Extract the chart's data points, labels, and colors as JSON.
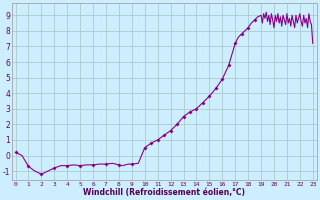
{
  "xlabel": "Windchill (Refroidissement éolien,°C)",
  "background_color": "#cceeff",
  "grid_color": "#aacccc",
  "line_color": "#880088",
  "marker_color": "#880088",
  "xlim": [
    -0.3,
    23.3
  ],
  "ylim": [
    -1.6,
    9.8
  ],
  "yticks": [
    -1,
    0,
    1,
    2,
    3,
    4,
    5,
    6,
    7,
    8,
    9
  ],
  "xticks": [
    0,
    1,
    2,
    3,
    4,
    5,
    6,
    7,
    8,
    9,
    10,
    11,
    12,
    13,
    14,
    15,
    16,
    17,
    18,
    19,
    20,
    21,
    22,
    23
  ],
  "x": [
    0.0,
    0.5,
    1.0,
    1.5,
    2.0,
    2.5,
    3.0,
    3.5,
    4.0,
    4.5,
    5.0,
    5.5,
    6.0,
    6.5,
    7.0,
    7.5,
    8.0,
    8.25,
    8.5,
    8.75,
    9.0,
    9.5,
    10.0,
    10.5,
    11.0,
    11.5,
    12.0,
    12.5,
    13.0,
    13.5,
    14.0,
    14.5,
    15.0,
    15.5,
    16.0,
    16.5,
    17.0,
    17.25,
    17.5,
    18.0,
    18.25,
    18.5,
    18.75,
    19.0,
    19.1,
    19.2,
    19.3,
    19.4,
    19.5,
    19.6,
    19.7,
    19.8,
    19.9,
    20.0,
    20.1,
    20.2,
    20.3,
    20.4,
    20.5,
    20.6,
    20.7,
    20.8,
    20.9,
    21.0,
    21.1,
    21.2,
    21.3,
    21.4,
    21.5,
    21.6,
    21.7,
    21.8,
    21.9,
    22.0,
    22.1,
    22.2,
    22.3,
    22.4,
    22.5,
    22.6,
    22.7,
    22.8,
    22.9,
    23.0
  ],
  "y": [
    0.2,
    0.0,
    -0.7,
    -1.0,
    -1.2,
    -1.0,
    -0.8,
    -0.65,
    -0.65,
    -0.6,
    -0.65,
    -0.6,
    -0.6,
    -0.55,
    -0.55,
    -0.5,
    -0.6,
    -0.65,
    -0.6,
    -0.55,
    -0.55,
    -0.5,
    0.5,
    0.8,
    1.0,
    1.3,
    1.6,
    2.0,
    2.5,
    2.8,
    3.0,
    3.4,
    3.8,
    4.3,
    4.9,
    5.8,
    7.2,
    7.6,
    7.8,
    8.2,
    8.5,
    8.7,
    8.9,
    9.0,
    8.5,
    9.1,
    8.8,
    9.2,
    8.6,
    9.0,
    8.4,
    9.1,
    8.7,
    8.2,
    9.0,
    8.6,
    9.1,
    8.5,
    8.9,
    8.3,
    9.0,
    8.7,
    8.4,
    9.1,
    8.5,
    8.8,
    8.3,
    9.0,
    8.6,
    8.2,
    9.0,
    8.5,
    8.8,
    9.1,
    8.6,
    8.3,
    9.0,
    8.5,
    8.8,
    8.2,
    9.1,
    8.6,
    8.4,
    7.2
  ],
  "marker_x": [
    0.0,
    1.0,
    2.0,
    3.0,
    4.0,
    5.0,
    6.0,
    7.0,
    8.0,
    9.0,
    10.0,
    10.5,
    11.0,
    11.5,
    12.0,
    12.5,
    13.0,
    13.5,
    14.0,
    14.5,
    15.0,
    15.5,
    16.0,
    16.5,
    17.0,
    17.5,
    18.0,
    18.5
  ],
  "marker_y": [
    0.2,
    -0.7,
    -1.2,
    -0.8,
    -0.65,
    -0.65,
    -0.6,
    -0.55,
    -0.6,
    -0.55,
    0.5,
    0.8,
    1.0,
    1.3,
    1.6,
    2.0,
    2.5,
    2.8,
    3.0,
    3.4,
    3.8,
    4.3,
    4.9,
    5.8,
    7.2,
    7.8,
    8.2,
    8.7
  ]
}
